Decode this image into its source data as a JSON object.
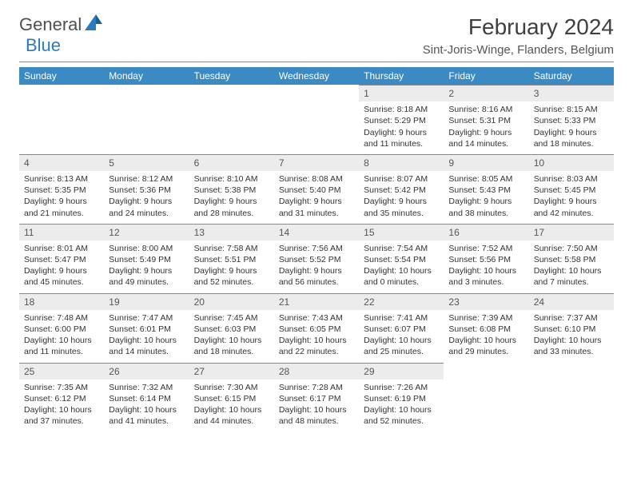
{
  "logo": {
    "text1": "General",
    "text2": "Blue"
  },
  "title": "February 2024",
  "location": "Sint-Joris-Winge, Flanders, Belgium",
  "colors": {
    "header_bg": "#3b8ac4",
    "header_text": "#ffffff",
    "daynum_bg": "#ececec",
    "border": "#888888",
    "text": "#333333"
  },
  "daysOfWeek": [
    "Sunday",
    "Monday",
    "Tuesday",
    "Wednesday",
    "Thursday",
    "Friday",
    "Saturday"
  ],
  "leadingBlanks": 4,
  "days": [
    {
      "n": "1",
      "sunrise": "8:18 AM",
      "sunset": "5:29 PM",
      "daylight": "9 hours and 11 minutes."
    },
    {
      "n": "2",
      "sunrise": "8:16 AM",
      "sunset": "5:31 PM",
      "daylight": "9 hours and 14 minutes."
    },
    {
      "n": "3",
      "sunrise": "8:15 AM",
      "sunset": "5:33 PM",
      "daylight": "9 hours and 18 minutes."
    },
    {
      "n": "4",
      "sunrise": "8:13 AM",
      "sunset": "5:35 PM",
      "daylight": "9 hours and 21 minutes."
    },
    {
      "n": "5",
      "sunrise": "8:12 AM",
      "sunset": "5:36 PM",
      "daylight": "9 hours and 24 minutes."
    },
    {
      "n": "6",
      "sunrise": "8:10 AM",
      "sunset": "5:38 PM",
      "daylight": "9 hours and 28 minutes."
    },
    {
      "n": "7",
      "sunrise": "8:08 AM",
      "sunset": "5:40 PM",
      "daylight": "9 hours and 31 minutes."
    },
    {
      "n": "8",
      "sunrise": "8:07 AM",
      "sunset": "5:42 PM",
      "daylight": "9 hours and 35 minutes."
    },
    {
      "n": "9",
      "sunrise": "8:05 AM",
      "sunset": "5:43 PM",
      "daylight": "9 hours and 38 minutes."
    },
    {
      "n": "10",
      "sunrise": "8:03 AM",
      "sunset": "5:45 PM",
      "daylight": "9 hours and 42 minutes."
    },
    {
      "n": "11",
      "sunrise": "8:01 AM",
      "sunset": "5:47 PM",
      "daylight": "9 hours and 45 minutes."
    },
    {
      "n": "12",
      "sunrise": "8:00 AM",
      "sunset": "5:49 PM",
      "daylight": "9 hours and 49 minutes."
    },
    {
      "n": "13",
      "sunrise": "7:58 AM",
      "sunset": "5:51 PM",
      "daylight": "9 hours and 52 minutes."
    },
    {
      "n": "14",
      "sunrise": "7:56 AM",
      "sunset": "5:52 PM",
      "daylight": "9 hours and 56 minutes."
    },
    {
      "n": "15",
      "sunrise": "7:54 AM",
      "sunset": "5:54 PM",
      "daylight": "10 hours and 0 minutes."
    },
    {
      "n": "16",
      "sunrise": "7:52 AM",
      "sunset": "5:56 PM",
      "daylight": "10 hours and 3 minutes."
    },
    {
      "n": "17",
      "sunrise": "7:50 AM",
      "sunset": "5:58 PM",
      "daylight": "10 hours and 7 minutes."
    },
    {
      "n": "18",
      "sunrise": "7:48 AM",
      "sunset": "6:00 PM",
      "daylight": "10 hours and 11 minutes."
    },
    {
      "n": "19",
      "sunrise": "7:47 AM",
      "sunset": "6:01 PM",
      "daylight": "10 hours and 14 minutes."
    },
    {
      "n": "20",
      "sunrise": "7:45 AM",
      "sunset": "6:03 PM",
      "daylight": "10 hours and 18 minutes."
    },
    {
      "n": "21",
      "sunrise": "7:43 AM",
      "sunset": "6:05 PM",
      "daylight": "10 hours and 22 minutes."
    },
    {
      "n": "22",
      "sunrise": "7:41 AM",
      "sunset": "6:07 PM",
      "daylight": "10 hours and 25 minutes."
    },
    {
      "n": "23",
      "sunrise": "7:39 AM",
      "sunset": "6:08 PM",
      "daylight": "10 hours and 29 minutes."
    },
    {
      "n": "24",
      "sunrise": "7:37 AM",
      "sunset": "6:10 PM",
      "daylight": "10 hours and 33 minutes."
    },
    {
      "n": "25",
      "sunrise": "7:35 AM",
      "sunset": "6:12 PM",
      "daylight": "10 hours and 37 minutes."
    },
    {
      "n": "26",
      "sunrise": "7:32 AM",
      "sunset": "6:14 PM",
      "daylight": "10 hours and 41 minutes."
    },
    {
      "n": "27",
      "sunrise": "7:30 AM",
      "sunset": "6:15 PM",
      "daylight": "10 hours and 44 minutes."
    },
    {
      "n": "28",
      "sunrise": "7:28 AM",
      "sunset": "6:17 PM",
      "daylight": "10 hours and 48 minutes."
    },
    {
      "n": "29",
      "sunrise": "7:26 AM",
      "sunset": "6:19 PM",
      "daylight": "10 hours and 52 minutes."
    }
  ]
}
